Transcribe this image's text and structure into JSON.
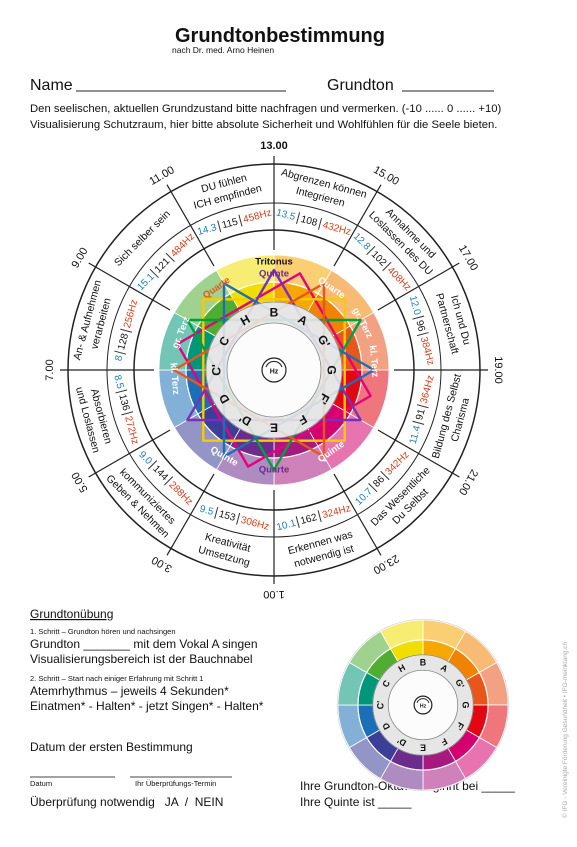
{
  "header": {
    "title": "Grundtonbestimmung",
    "subtitle": "nach Dr. med. Arno Heinen"
  },
  "form": {
    "name_label": "Name",
    "grundton_label": "Grundton"
  },
  "instructions": [
    "Den seelischen, aktuellen Grundzustand bitte nachfragen und vermerken. (-10 ...... 0 ...... +10)",
    "Visualisierung Schutzraum, hier bitte absolute Sicherheit und Wohlfühlen für die Seele bieten."
  ],
  "wheel": {
    "hours": [
      "13.00",
      "15.00",
      "17.00",
      "19.00",
      "21.00",
      "23.00",
      "1.00",
      "3.00",
      "5.00",
      "7.00",
      "9.00",
      "11.00"
    ],
    "sectors": [
      {
        "lines": [
          "Abgrenzen können",
          "Integrieren"
        ],
        "freq": [
          "13.5",
          "108",
          "432Hz"
        ]
      },
      {
        "lines": [
          "Annahme und",
          "Loslassen des DU"
        ],
        "freq": [
          "12.8",
          "102",
          "408Hz"
        ]
      },
      {
        "lines": [
          "Ich und Du",
          "Partnerschaft"
        ],
        "freq": [
          "12.0",
          "96",
          "384Hz"
        ]
      },
      {
        "lines": [
          "Bildung des Selbst",
          "Charisma"
        ],
        "freq": [
          "11.4",
          "91",
          "364Hz"
        ]
      },
      {
        "lines": [
          "Das Wesentliche",
          "Du Selbst"
        ],
        "freq": [
          "10.7",
          "86",
          "342Hz"
        ]
      },
      {
        "lines": [
          "Erkennen was",
          "notwendig ist"
        ],
        "freq": [
          "10.1",
          "162",
          "324Hz"
        ]
      },
      {
        "lines": [
          "Kreativität",
          "Umsetzung"
        ],
        "freq": [
          "9.5",
          "153",
          "306Hz"
        ]
      },
      {
        "lines": [
          "kommuniziertes",
          "Geben & Nehmen"
        ],
        "freq": [
          "9.0",
          "144",
          "288Hz"
        ]
      },
      {
        "lines": [
          "Absorbieren",
          "und Loslassen"
        ],
        "freq": [
          "8.5",
          "136",
          "272Hz"
        ]
      },
      {
        "lines": [
          "An- & Aufnehmen",
          "verarbeiten"
        ],
        "freq": [
          "8",
          "128",
          "256Hz"
        ]
      },
      {
        "lines": [
          "Sich selber sein",
          ""
        ],
        "freq": [
          "15.1",
          "121",
          "484Hz"
        ]
      },
      {
        "lines": [
          "DU fühlen",
          "ICH empfinden"
        ],
        "freq": [
          "14.3",
          "115",
          "458Hz"
        ]
      }
    ],
    "intervals": [
      "Tritonus",
      "Quinte",
      "Quarte",
      "gr. Terz",
      "kl. Terz",
      "Quarte",
      "gr. Terz",
      "kl. Terz",
      "Quinte",
      "Quarte",
      "Quinte"
    ],
    "notes": [
      "H",
      "B",
      "A",
      "G'",
      "G",
      "F'",
      "F",
      "E",
      "D'",
      "D",
      "C'",
      "C"
    ],
    "center_label": "Hz"
  },
  "exercise": {
    "heading": "Grundtonübung",
    "step1_title": "1. Schritt – Grundton hören und nachsingen",
    "step1_lines": [
      "Grundton _______ mit dem Vokal A singen",
      "Visualisierungsbereich ist der Bauchnabel"
    ],
    "step2_title": "2. Schritt – Start nach einiger Erfahrung mit Schritt 1",
    "step2_lines": [
      "Atemrhythmus  –  jeweils 4 Sekunden*",
      "Einatmen* - Halten* - jetzt Singen* - Halten*"
    ]
  },
  "dates": {
    "heading": "Datum der ersten Bestimmung",
    "date_label": "Datum",
    "review_label": "Ihr Überprüfungs-Termin",
    "review_question": "Überprüfung notwendig   JA  /  NEIN"
  },
  "small_wheel": {
    "notes": [
      "H",
      "B",
      "A",
      "G'",
      "G",
      "F'",
      "F",
      "E",
      "D'",
      "D",
      "C'",
      "C"
    ],
    "center_label": "Hz"
  },
  "octave": [
    "Ihre Grundton-Oktave beginnt bei _____",
    "Ihre Quinte ist _____"
  ],
  "copyright": "© IFG - Vereinigte Förderung Gesundheit • IFG-meinklang.ch"
}
